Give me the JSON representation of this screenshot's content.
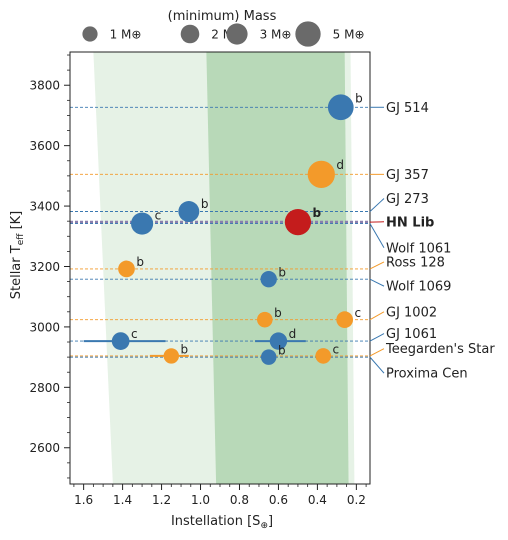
{
  "chart_data": {
    "type": "scatter",
    "xlabel": "Instellation [S⊕]",
    "ylabel": "Stellar T_eff [K]",
    "x_reversed": true,
    "xlim": [
      1.67,
      0.13
    ],
    "ylim": [
      2480,
      3910
    ],
    "xticks": [
      1.6,
      1.4,
      1.2,
      1.0,
      0.8,
      0.6,
      0.4,
      0.2
    ],
    "xtick_labels": [
      "1.6",
      "1.4",
      "1.2",
      "1.0",
      "0.8",
      "0.6",
      "0.4",
      "0.2"
    ],
    "yticks": [
      2600,
      2800,
      3000,
      3200,
      3400,
      3600,
      3800
    ],
    "ytick_labels": [
      "2600",
      "2800",
      "3000",
      "3200",
      "3400",
      "3600",
      "3800"
    ],
    "grid": false,
    "habitable_zone": {
      "optimistic_color": "#e6f2e6",
      "conservative_color": "#b8d9b8",
      "optimistic": {
        "inner_at_ymax": 1.55,
        "inner_at_ymin": 1.45,
        "outer_at_ymax": 0.23,
        "outer_at_ymin": 0.21
      },
      "conservative": {
        "inner_at_ymax": 0.97,
        "inner_at_ymin": 0.92,
        "outer_at_ymax": 0.26,
        "outer_at_ymin": 0.24
      }
    },
    "size_legend": {
      "title": "(minimum) Mass",
      "entries": [
        {
          "mass": 1,
          "label": "1 M⊕"
        },
        {
          "mass": 2,
          "label": "2 M⊕"
        },
        {
          "mass": 3,
          "label": "3 M⊕"
        },
        {
          "mass": 5,
          "label": "5 M⊕"
        }
      ]
    },
    "colors": {
      "blue": "#3a78b0",
      "orange": "#f39a2a",
      "red": "#c41c1c",
      "gray": "#6a6a6a"
    },
    "stars": [
      {
        "name": "GJ 514",
        "teff": 3727,
        "color": "blue",
        "bold": false,
        "label_teff": 3727
      },
      {
        "name": "GJ 357",
        "teff": 3505,
        "color": "orange",
        "bold": false,
        "label_teff": 3505
      },
      {
        "name": "GJ 273",
        "teff": 3382,
        "color": "blue",
        "bold": false,
        "label_teff": 3425
      },
      {
        "name": "HN Lib",
        "teff": 3347,
        "color": "red",
        "bold": true,
        "label_teff": 3348
      },
      {
        "name": "Wolf 1061",
        "teff": 3342,
        "color": "blue",
        "bold": false,
        "label_teff": 3262
      },
      {
        "name": "Ross 128",
        "teff": 3192,
        "color": "orange",
        "bold": false,
        "label_teff": 3215
      },
      {
        "name": "Wolf 1069",
        "teff": 3158,
        "color": "blue",
        "bold": false,
        "label_teff": 3135
      },
      {
        "name": "GJ 1002",
        "teff": 3024,
        "color": "orange",
        "bold": false,
        "label_teff": 3050
      },
      {
        "name": "GJ 1061",
        "teff": 2953,
        "color": "blue",
        "bold": false,
        "label_teff": 2978
      },
      {
        "name": "Teegarden's Star",
        "teff": 2904,
        "color": "orange",
        "bold": false,
        "label_teff": 2928
      },
      {
        "name": "Proxima Cen",
        "teff": 2900,
        "color": "blue",
        "bold": false,
        "label_teff": 2847
      }
    ],
    "planets": [
      {
        "host": "GJ 514",
        "letter": "b",
        "x": 0.28,
        "y": 3727,
        "mass": 5.2,
        "color": "blue"
      },
      {
        "host": "GJ 357",
        "letter": "d",
        "x": 0.38,
        "y": 3505,
        "mass": 6.1,
        "color": "orange"
      },
      {
        "host": "GJ 273",
        "letter": "b",
        "x": 1.06,
        "y": 3382,
        "mass": 2.9,
        "color": "blue"
      },
      {
        "host": "HN Lib",
        "letter": "b",
        "x": 0.5,
        "y": 3347,
        "mass": 5.5,
        "color": "red"
      },
      {
        "host": "Wolf 1061",
        "letter": "c",
        "x": 1.3,
        "y": 3342,
        "mass": 3.4,
        "color": "blue"
      },
      {
        "host": "Ross 128",
        "letter": "b",
        "x": 1.38,
        "y": 3192,
        "mass": 1.4,
        "color": "orange"
      },
      {
        "host": "Wolf 1069",
        "letter": "b",
        "x": 0.65,
        "y": 3158,
        "mass": 1.3,
        "color": "blue"
      },
      {
        "host": "GJ 1002",
        "letter": "b",
        "x": 0.67,
        "y": 3024,
        "mass": 1.1,
        "color": "orange"
      },
      {
        "host": "GJ 1002",
        "letter": "c",
        "x": 0.26,
        "y": 3024,
        "mass": 1.4,
        "color": "orange"
      },
      {
        "host": "GJ 1061",
        "letter": "c",
        "x": 1.41,
        "y": 2953,
        "mass": 1.7,
        "color": "blue",
        "xerr": [
          1.6,
          1.18
        ]
      },
      {
        "host": "GJ 1061",
        "letter": "d",
        "x": 0.6,
        "y": 2953,
        "mass": 1.6,
        "color": "blue",
        "xerr": [
          0.72,
          0.46
        ]
      },
      {
        "host": "Teegarden's Star",
        "letter": "b",
        "x": 1.15,
        "y": 2904,
        "mass": 1.05,
        "color": "orange",
        "xerr": [
          1.26,
          1.06
        ]
      },
      {
        "host": "Teegarden's Star",
        "letter": "c",
        "x": 0.37,
        "y": 2904,
        "mass": 1.1,
        "color": "orange"
      },
      {
        "host": "Proxima Cen",
        "letter": "b",
        "x": 0.65,
        "y": 2900,
        "mass": 1.07,
        "color": "blue"
      }
    ]
  }
}
